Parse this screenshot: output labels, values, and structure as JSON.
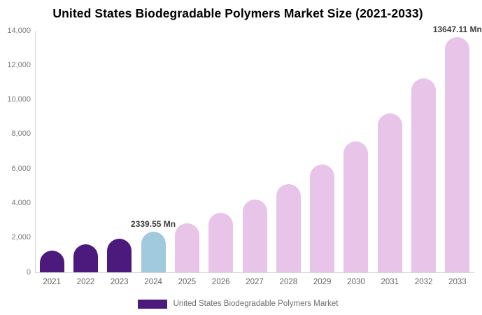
{
  "title": "United States Biodegradable Polymers Market Size (2021-2033)",
  "legend": {
    "label": "United States Biodegradable Polymers Market",
    "swatch_color": "#4c1a7d"
  },
  "colors": {
    "historical_bar": "#4c1a7d",
    "base_year_bar": "#a2cade",
    "forecast_bar": "#e9c4e9",
    "axis_line": "#d6d6d6",
    "y_tick_label": "#7a7a7a",
    "x_tick_label": "#666666",
    "annotation_text": "#3d3d3d",
    "legend_text": "#6e6e6e",
    "title_text": "#000000",
    "background": "#ffffff"
  },
  "y_axis": {
    "tick_labels": [
      "0",
      "2,000",
      "4,000",
      "6,000",
      "8,000",
      "10,000",
      "12,000",
      "14,000"
    ],
    "tick_values": [
      0,
      2000,
      4000,
      6000,
      8000,
      10000,
      12000,
      14000
    ]
  },
  "chart_data": {
    "type": "bar",
    "title": "United States Biodegradable Polymers Market Size (2021-2033)",
    "series_name": "United States Biodegradable Polymers Market",
    "unit": "Mn",
    "categories": [
      "2021",
      "2022",
      "2023",
      "2024",
      "2025",
      "2026",
      "2027",
      "2028",
      "2029",
      "2030",
      "2031",
      "2032",
      "2033"
    ],
    "values": [
      1250,
      1620,
      1960,
      2339.55,
      2846,
      3462,
      4212,
      5124,
      6233,
      7583,
      9225,
      11223,
      13647.11
    ],
    "value_notes": "2024 and 2033 are labeled on the chart; other values estimated from bar heights",
    "bar_colors": [
      "#4c1a7d",
      "#4c1a7d",
      "#4c1a7d",
      "#a2cade",
      "#e9c4e9",
      "#e9c4e9",
      "#e9c4e9",
      "#e9c4e9",
      "#e9c4e9",
      "#e9c4e9",
      "#e9c4e9",
      "#e9c4e9",
      "#e9c4e9"
    ],
    "ylim": [
      0,
      14000
    ],
    "xlabel": "",
    "ylabel": "",
    "grid": false,
    "legend_position": "bottom",
    "annotations": [
      {
        "category": "2024",
        "index": 3,
        "text": "2339.55 Mn"
      },
      {
        "category": "2033",
        "index": 12,
        "text": "13647.11 Mn"
      }
    ]
  }
}
